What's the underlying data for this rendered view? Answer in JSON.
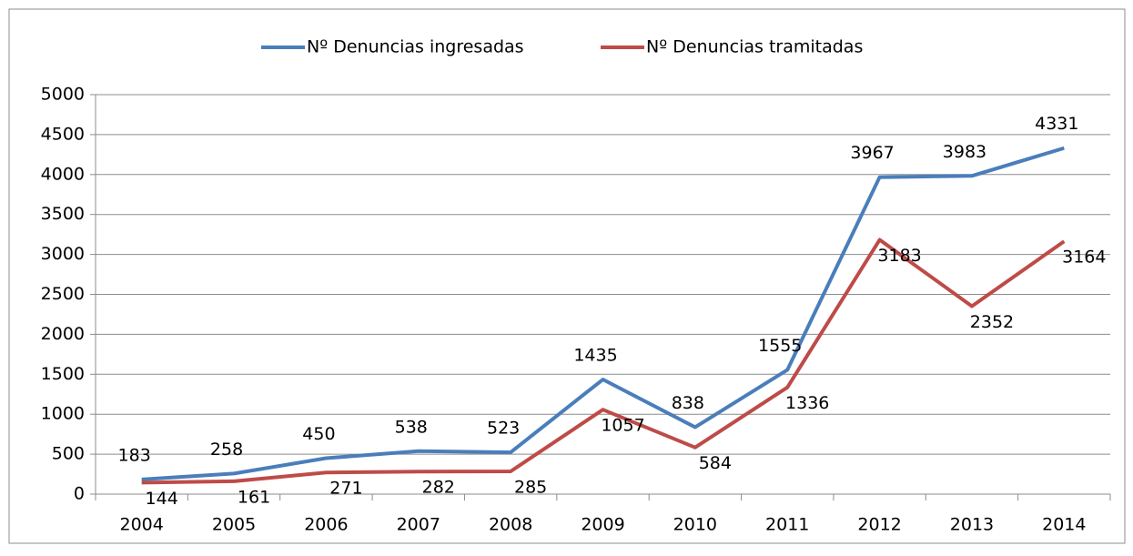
{
  "chart_data": {
    "type": "line",
    "categories": [
      "2004",
      "2005",
      "2006",
      "2007",
      "2008",
      "2009",
      "2010",
      "2011",
      "2012",
      "2013",
      "2014"
    ],
    "series": [
      {
        "name": "Nº Denuncias ingresadas",
        "color": "#4a7ebb",
        "values": [
          183,
          258,
          450,
          538,
          523,
          1435,
          838,
          1555,
          3967,
          3983,
          4331
        ]
      },
      {
        "name": "Nº Denuncias tramitadas",
        "color": "#be4b48",
        "values": [
          144,
          161,
          271,
          282,
          285,
          1057,
          584,
          1336,
          3183,
          2352,
          3164
        ]
      }
    ],
    "ylim": [
      0,
      5000
    ],
    "yticks": [
      0,
      500,
      1000,
      1500,
      2000,
      2500,
      3000,
      3500,
      4000,
      4500,
      5000
    ],
    "grid": true,
    "legend": "top",
    "data_labels": true
  }
}
